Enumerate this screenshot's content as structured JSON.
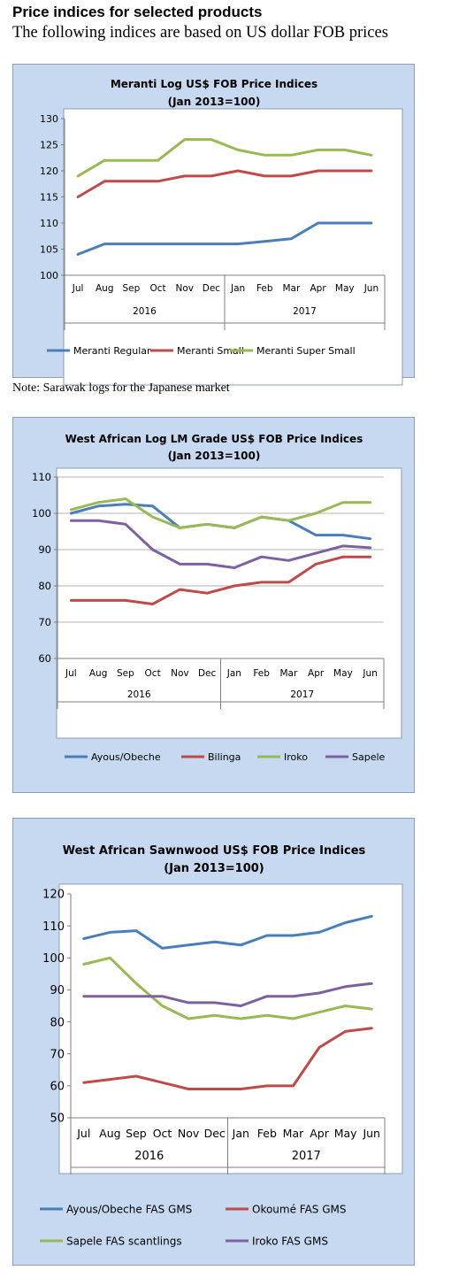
{
  "header": {
    "title": "Price indices for selected products",
    "subtitle": "The following indices are based on US dollar FOB prices"
  },
  "note": "Note: Sarawak logs for the Japanese market",
  "colors": {
    "blue": "#4a7ebb",
    "red": "#be4b48",
    "green": "#98b954",
    "purple": "#7d60a0"
  },
  "chart_data": [
    {
      "type": "line",
      "title": "Meranti Log US$ FOB Price Indices",
      "subtitle": "(Jan 2013=100)",
      "categories": [
        "Jul",
        "Aug",
        "Sep",
        "Oct",
        "Nov",
        "Dec",
        "Jan",
        "Feb",
        "Mar",
        "Apr",
        "May",
        "Jun"
      ],
      "groups": [
        {
          "label": "2016",
          "span": 6
        },
        {
          "label": "2017",
          "span": 6
        }
      ],
      "ylim": [
        100,
        130
      ],
      "yticks": [
        100,
        105,
        110,
        115,
        120,
        125,
        130
      ],
      "grid": false,
      "legend": "bottom",
      "series": [
        {
          "name": "Meranti Regular",
          "color": "#4a7ebb",
          "values": [
            104,
            106,
            106,
            106,
            106,
            106,
            106,
            106.5,
            107,
            110,
            110,
            110
          ]
        },
        {
          "name": "Meranti Small",
          "color": "#be4b48",
          "values": [
            115,
            118,
            118,
            118,
            119,
            119,
            120,
            119,
            119,
            120,
            120,
            120
          ]
        },
        {
          "name": "Meranti Super Small",
          "color": "#98b954",
          "values": [
            119,
            122,
            122,
            122,
            126,
            126,
            124,
            123,
            123,
            124,
            124,
            123
          ]
        }
      ]
    },
    {
      "type": "line",
      "title": "West African Log LM Grade US$ FOB Price Indices",
      "subtitle": "(Jan 2013=100)",
      "categories": [
        "Jul",
        "Aug",
        "Sep",
        "Oct",
        "Nov",
        "Dec",
        "Jan",
        "Feb",
        "Mar",
        "Apr",
        "May",
        "Jun"
      ],
      "groups": [
        {
          "label": "2016",
          "span": 6
        },
        {
          "label": "2017",
          "span": 6
        }
      ],
      "ylim": [
        60,
        110
      ],
      "yticks": [
        60,
        70,
        80,
        90,
        100,
        110
      ],
      "grid": true,
      "legend": "bottom",
      "series": [
        {
          "name": "Ayous/Obeche",
          "color": "#4a7ebb",
          "values": [
            100,
            102,
            102.5,
            102,
            96,
            97,
            96,
            99,
            98,
            94,
            94,
            93
          ]
        },
        {
          "name": "Bilinga",
          "color": "#be4b48",
          "values": [
            76,
            76,
            76,
            75,
            79,
            78,
            80,
            81,
            81,
            86,
            88,
            88
          ]
        },
        {
          "name": "Iroko",
          "color": "#98b954",
          "values": [
            101,
            103,
            104,
            99,
            96,
            97,
            96,
            99,
            98,
            100,
            103,
            103
          ]
        },
        {
          "name": "Sapele",
          "color": "#7d60a0",
          "values": [
            98,
            98,
            97,
            90,
            86,
            86,
            85,
            88,
            87,
            89,
            91,
            90.5
          ]
        }
      ]
    },
    {
      "type": "line",
      "title": "West African Sawnwood US$ FOB Price Indices",
      "subtitle": "(Jan 2013=100)",
      "categories": [
        "Jul",
        "Aug",
        "Sep",
        "Oct",
        "Nov",
        "Dec",
        "Jan",
        "Feb",
        "Mar",
        "Apr",
        "May",
        "Jun"
      ],
      "groups": [
        {
          "label": "2016",
          "span": 6
        },
        {
          "label": "2017",
          "span": 6
        }
      ],
      "ylim": [
        50,
        120
      ],
      "yticks": [
        50,
        60,
        70,
        80,
        90,
        100,
        110,
        120
      ],
      "grid": false,
      "legend": "bottom",
      "series": [
        {
          "name": "Ayous/Obeche  FAS GMS",
          "color": "#4a7ebb",
          "values": [
            106,
            108,
            108.5,
            103,
            104,
            105,
            104,
            107,
            107,
            108,
            111,
            113
          ]
        },
        {
          "name": "Okoumé  FAS GMS",
          "color": "#be4b48",
          "values": [
            61,
            62,
            63,
            61,
            59,
            59,
            59,
            60,
            60,
            72,
            77,
            78
          ]
        },
        {
          "name": "Sapele FAS scantlings",
          "color": "#98b954",
          "values": [
            98,
            100,
            92,
            85,
            81,
            82,
            81,
            82,
            81,
            83,
            85,
            84
          ]
        },
        {
          "name": "Iroko FAS GMS",
          "color": "#7d60a0",
          "values": [
            88,
            88,
            88,
            88,
            86,
            86,
            85,
            88,
            88,
            89,
            91,
            92
          ]
        }
      ]
    }
  ]
}
